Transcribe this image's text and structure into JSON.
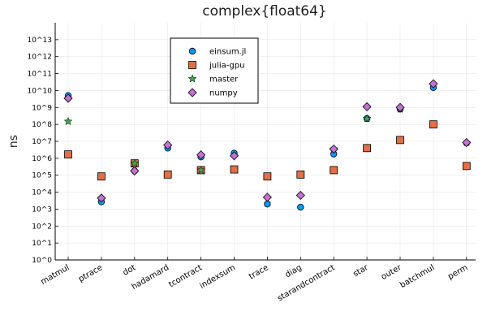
{
  "chart_data": {
    "type": "scatter",
    "title": "complex{float64}",
    "xlabel": "",
    "ylabel": "ns",
    "y_scale": "log10",
    "ylim_exponent": [
      0,
      14
    ],
    "y_tick_labels": [
      "10^0",
      "10^1",
      "10^2",
      "10^3",
      "10^4",
      "10^5",
      "10^6",
      "10^7",
      "10^8",
      "10^9",
      "10^10",
      "10^11",
      "10^12",
      "10^13"
    ],
    "grid": true,
    "legend_position": "top-center",
    "categories": [
      "matmul",
      "ptrace",
      "dot",
      "hadamard",
      "tcontract",
      "indexsum",
      "trace",
      "diag",
      "starandcontract",
      "star",
      "outer",
      "batchmul",
      "perm"
    ],
    "series": [
      {
        "name": "einsum.jl",
        "marker": "circle",
        "color": "#009AFA",
        "values": [
          5000000000.0,
          2700.0,
          180000.0,
          4000000.0,
          1200000.0,
          2000000.0,
          2000.0,
          1300.0,
          1800000.0,
          220000000.0,
          800000000.0,
          15000000000.0,
          8000000.0
        ]
      },
      {
        "name": "julia-gpu",
        "marker": "square",
        "color": "#E26F46",
        "values": [
          1700000.0,
          85000.0,
          500000.0,
          110000.0,
          200000.0,
          220000.0,
          85000.0,
          110000.0,
          200000.0,
          4000000.0,
          12000000.0,
          100000000.0,
          350000.0
        ]
      },
      {
        "name": "master",
        "marker": "star",
        "color": "#3DA44D",
        "values": [
          150000000.0,
          null,
          500000.0,
          null,
          200000.0,
          null,
          null,
          null,
          3500000.0,
          220000000.0,
          800000000.0,
          null,
          null
        ]
      },
      {
        "name": "numpy",
        "marker": "diamond",
        "color": "#C371D2",
        "values": [
          3500000000.0,
          4500.0,
          180000.0,
          6000000.0,
          1600000.0,
          1400000.0,
          5000.0,
          6500.0,
          3500000.0,
          1100000000.0,
          1000000000.0,
          25000000000.0,
          8500000.0
        ]
      }
    ]
  }
}
